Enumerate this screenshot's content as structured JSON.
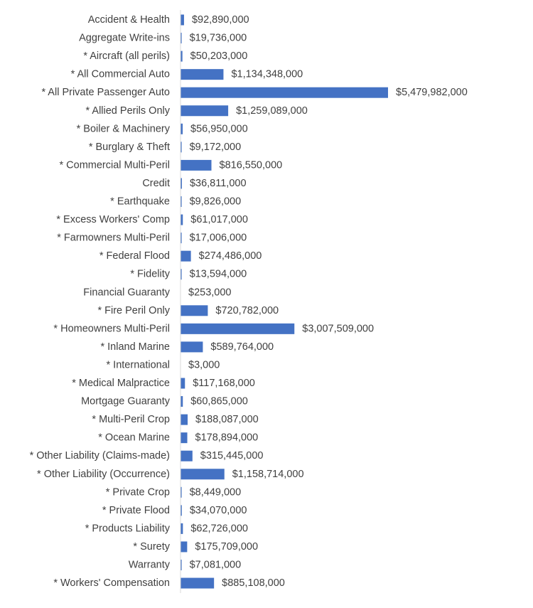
{
  "chart_data": {
    "type": "bar",
    "orientation": "horizontal",
    "title": "",
    "xlabel": "",
    "ylabel": "",
    "bar_color": "#4472C4",
    "grid": false,
    "legend": "none",
    "xlim": [
      0,
      5600000000
    ],
    "categories": [
      "Accident & Health",
      "Aggregate Write-ins",
      "* Aircraft (all perils)",
      "* All Commercial Auto",
      "* All Private Passenger Auto",
      "* Allied Perils Only",
      "* Boiler & Machinery",
      "* Burglary & Theft",
      "* Commercial Multi-Peril",
      "Credit",
      "* Earthquake",
      "* Excess Workers' Comp",
      "* Farmowners Multi-Peril",
      "* Federal Flood",
      "* Fidelity",
      "Financial Guaranty",
      "* Fire Peril Only",
      "* Homeowners Multi-Peril",
      "* Inland Marine",
      "* International",
      "* Medical Malpractice",
      "Mortgage Guaranty",
      "* Multi-Peril Crop",
      "* Ocean Marine",
      "* Other Liability (Claims-made)",
      "* Other Liability (Occurrence)",
      "* Private Crop",
      "* Private Flood",
      "* Products Liability",
      "* Surety",
      "Warranty",
      "* Workers' Compensation"
    ],
    "values": [
      92890000,
      19736000,
      50203000,
      1134348000,
      5479982000,
      1259089000,
      56950000,
      9172000,
      816550000,
      36811000,
      9826000,
      61017000,
      17006000,
      274486000,
      13594000,
      253000,
      720782000,
      3007509000,
      589764000,
      3000,
      117168000,
      60865000,
      188087000,
      178894000,
      315445000,
      1158714000,
      8449000,
      34070000,
      62726000,
      175709000,
      7081000,
      885108000
    ],
    "value_labels": [
      "$92,890,000",
      "$19,736,000",
      "$50,203,000",
      "$1,134,348,000",
      "$5,479,982,000",
      "$1,259,089,000",
      "$56,950,000",
      "$9,172,000",
      "$816,550,000",
      "$36,811,000",
      "$9,826,000",
      "$61,017,000",
      "$17,006,000",
      "$274,486,000",
      "$13,594,000",
      "$253,000",
      "$720,782,000",
      "$3,007,509,000",
      "$589,764,000",
      "$3,000",
      "$117,168,000",
      "$60,865,000",
      "$188,087,000",
      "$178,894,000",
      "$315,445,000",
      "$1,158,714,000",
      "$8,449,000",
      "$34,070,000",
      "$62,726,000",
      "$175,709,000",
      "$7,081,000",
      "$885,108,000"
    ]
  }
}
